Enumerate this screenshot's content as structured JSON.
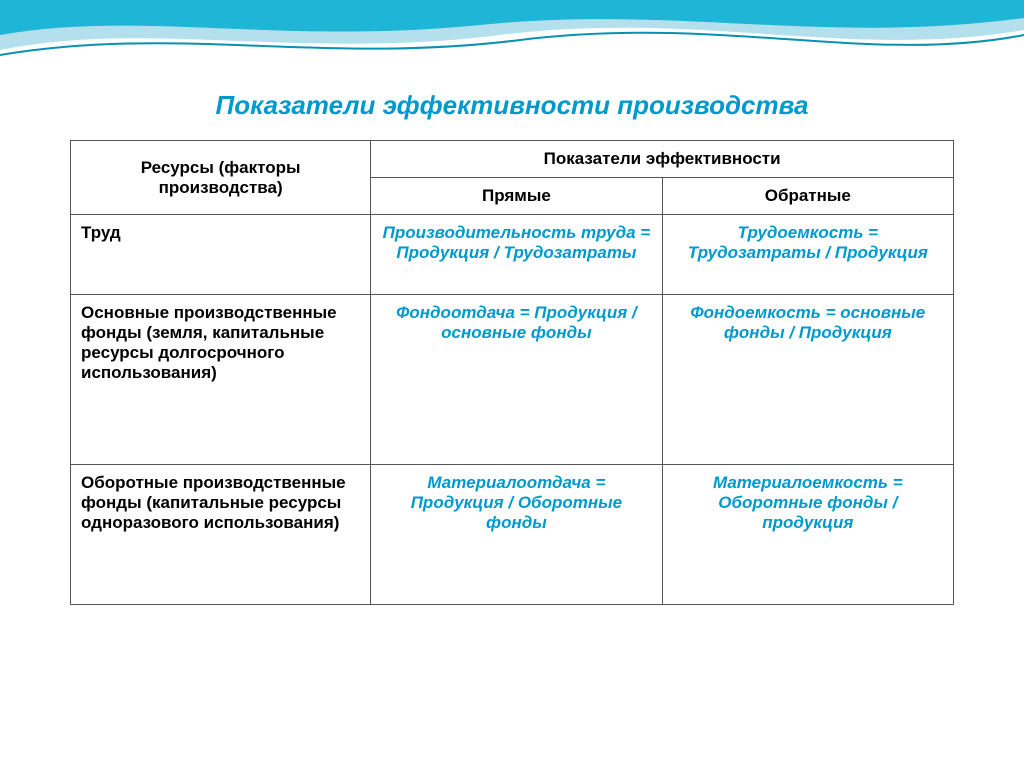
{
  "title": {
    "text": "Показатели эффективности производства",
    "color": "#0099cc",
    "fontsize": 26
  },
  "table": {
    "header_fontsize": 17,
    "cell_fontsize": 17,
    "border_color": "#555555",
    "header_color": "#000000",
    "resource_color": "#000000",
    "metric_color": "#0099cc",
    "headers": {
      "resources": "Ресурсы (факторы производства)",
      "efficiency": "Показатели эффективности",
      "direct": "Прямые",
      "inverse": "Обратные"
    },
    "rows": [
      {
        "resource": "Труд",
        "direct": "Производительность труда = Продукция / Трудозатраты",
        "inverse": "Трудоемкость = Трудозатраты / Продукция",
        "height": 80
      },
      {
        "resource": "Основные производственные фонды (земля, капитальные ресурсы долгосрочного использования)",
        "direct": "Фондоотдача = Продукция / основные фонды",
        "inverse": "Фондоемкость = основные фонды / Продукция",
        "height": 170
      },
      {
        "resource": "Оборотные производственные фонды (капитальные ресурсы одноразового использования)",
        "direct": "Материалоотдача = Продукция / Оборотные фонды",
        "inverse": "Материалоемкость = Оборотные фонды / продукция",
        "height": 140
      }
    ]
  },
  "decoration": {
    "wave_color_light": "#b3e0ec",
    "wave_color_dark": "#1fb5d6",
    "wave_stroke": "#0891b2"
  }
}
